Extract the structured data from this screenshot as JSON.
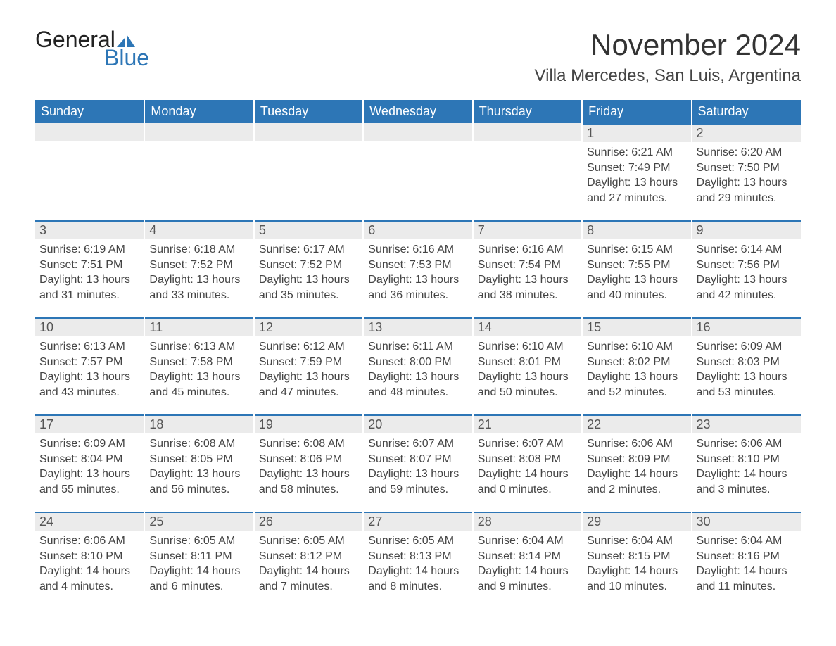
{
  "logo": {
    "text_top": "General",
    "text_bottom": "Blue",
    "accent_color": "#2d76b6"
  },
  "title": "November 2024",
  "location": "Villa Mercedes, San Luis, Argentina",
  "colors": {
    "header_bg": "#2d76b6",
    "header_text": "#ffffff",
    "daynum_bg": "#ebebeb",
    "daynum_border": "#2d76b6",
    "body_text": "#444444",
    "page_bg": "#ffffff"
  },
  "day_headers": [
    "Sunday",
    "Monday",
    "Tuesday",
    "Wednesday",
    "Thursday",
    "Friday",
    "Saturday"
  ],
  "weeks": [
    [
      null,
      null,
      null,
      null,
      null,
      {
        "n": "1",
        "sunrise": "Sunrise: 6:21 AM",
        "sunset": "Sunset: 7:49 PM",
        "daylight": "Daylight: 13 hours and 27 minutes."
      },
      {
        "n": "2",
        "sunrise": "Sunrise: 6:20 AM",
        "sunset": "Sunset: 7:50 PM",
        "daylight": "Daylight: 13 hours and 29 minutes."
      }
    ],
    [
      {
        "n": "3",
        "sunrise": "Sunrise: 6:19 AM",
        "sunset": "Sunset: 7:51 PM",
        "daylight": "Daylight: 13 hours and 31 minutes."
      },
      {
        "n": "4",
        "sunrise": "Sunrise: 6:18 AM",
        "sunset": "Sunset: 7:52 PM",
        "daylight": "Daylight: 13 hours and 33 minutes."
      },
      {
        "n": "5",
        "sunrise": "Sunrise: 6:17 AM",
        "sunset": "Sunset: 7:52 PM",
        "daylight": "Daylight: 13 hours and 35 minutes."
      },
      {
        "n": "6",
        "sunrise": "Sunrise: 6:16 AM",
        "sunset": "Sunset: 7:53 PM",
        "daylight": "Daylight: 13 hours and 36 minutes."
      },
      {
        "n": "7",
        "sunrise": "Sunrise: 6:16 AM",
        "sunset": "Sunset: 7:54 PM",
        "daylight": "Daylight: 13 hours and 38 minutes."
      },
      {
        "n": "8",
        "sunrise": "Sunrise: 6:15 AM",
        "sunset": "Sunset: 7:55 PM",
        "daylight": "Daylight: 13 hours and 40 minutes."
      },
      {
        "n": "9",
        "sunrise": "Sunrise: 6:14 AM",
        "sunset": "Sunset: 7:56 PM",
        "daylight": "Daylight: 13 hours and 42 minutes."
      }
    ],
    [
      {
        "n": "10",
        "sunrise": "Sunrise: 6:13 AM",
        "sunset": "Sunset: 7:57 PM",
        "daylight": "Daylight: 13 hours and 43 minutes."
      },
      {
        "n": "11",
        "sunrise": "Sunrise: 6:13 AM",
        "sunset": "Sunset: 7:58 PM",
        "daylight": "Daylight: 13 hours and 45 minutes."
      },
      {
        "n": "12",
        "sunrise": "Sunrise: 6:12 AM",
        "sunset": "Sunset: 7:59 PM",
        "daylight": "Daylight: 13 hours and 47 minutes."
      },
      {
        "n": "13",
        "sunrise": "Sunrise: 6:11 AM",
        "sunset": "Sunset: 8:00 PM",
        "daylight": "Daylight: 13 hours and 48 minutes."
      },
      {
        "n": "14",
        "sunrise": "Sunrise: 6:10 AM",
        "sunset": "Sunset: 8:01 PM",
        "daylight": "Daylight: 13 hours and 50 minutes."
      },
      {
        "n": "15",
        "sunrise": "Sunrise: 6:10 AM",
        "sunset": "Sunset: 8:02 PM",
        "daylight": "Daylight: 13 hours and 52 minutes."
      },
      {
        "n": "16",
        "sunrise": "Sunrise: 6:09 AM",
        "sunset": "Sunset: 8:03 PM",
        "daylight": "Daylight: 13 hours and 53 minutes."
      }
    ],
    [
      {
        "n": "17",
        "sunrise": "Sunrise: 6:09 AM",
        "sunset": "Sunset: 8:04 PM",
        "daylight": "Daylight: 13 hours and 55 minutes."
      },
      {
        "n": "18",
        "sunrise": "Sunrise: 6:08 AM",
        "sunset": "Sunset: 8:05 PM",
        "daylight": "Daylight: 13 hours and 56 minutes."
      },
      {
        "n": "19",
        "sunrise": "Sunrise: 6:08 AM",
        "sunset": "Sunset: 8:06 PM",
        "daylight": "Daylight: 13 hours and 58 minutes."
      },
      {
        "n": "20",
        "sunrise": "Sunrise: 6:07 AM",
        "sunset": "Sunset: 8:07 PM",
        "daylight": "Daylight: 13 hours and 59 minutes."
      },
      {
        "n": "21",
        "sunrise": "Sunrise: 6:07 AM",
        "sunset": "Sunset: 8:08 PM",
        "daylight": "Daylight: 14 hours and 0 minutes."
      },
      {
        "n": "22",
        "sunrise": "Sunrise: 6:06 AM",
        "sunset": "Sunset: 8:09 PM",
        "daylight": "Daylight: 14 hours and 2 minutes."
      },
      {
        "n": "23",
        "sunrise": "Sunrise: 6:06 AM",
        "sunset": "Sunset: 8:10 PM",
        "daylight": "Daylight: 14 hours and 3 minutes."
      }
    ],
    [
      {
        "n": "24",
        "sunrise": "Sunrise: 6:06 AM",
        "sunset": "Sunset: 8:10 PM",
        "daylight": "Daylight: 14 hours and 4 minutes."
      },
      {
        "n": "25",
        "sunrise": "Sunrise: 6:05 AM",
        "sunset": "Sunset: 8:11 PM",
        "daylight": "Daylight: 14 hours and 6 minutes."
      },
      {
        "n": "26",
        "sunrise": "Sunrise: 6:05 AM",
        "sunset": "Sunset: 8:12 PM",
        "daylight": "Daylight: 14 hours and 7 minutes."
      },
      {
        "n": "27",
        "sunrise": "Sunrise: 6:05 AM",
        "sunset": "Sunset: 8:13 PM",
        "daylight": "Daylight: 14 hours and 8 minutes."
      },
      {
        "n": "28",
        "sunrise": "Sunrise: 6:04 AM",
        "sunset": "Sunset: 8:14 PM",
        "daylight": "Daylight: 14 hours and 9 minutes."
      },
      {
        "n": "29",
        "sunrise": "Sunrise: 6:04 AM",
        "sunset": "Sunset: 8:15 PM",
        "daylight": "Daylight: 14 hours and 10 minutes."
      },
      {
        "n": "30",
        "sunrise": "Sunrise: 6:04 AM",
        "sunset": "Sunset: 8:16 PM",
        "daylight": "Daylight: 14 hours and 11 minutes."
      }
    ]
  ]
}
